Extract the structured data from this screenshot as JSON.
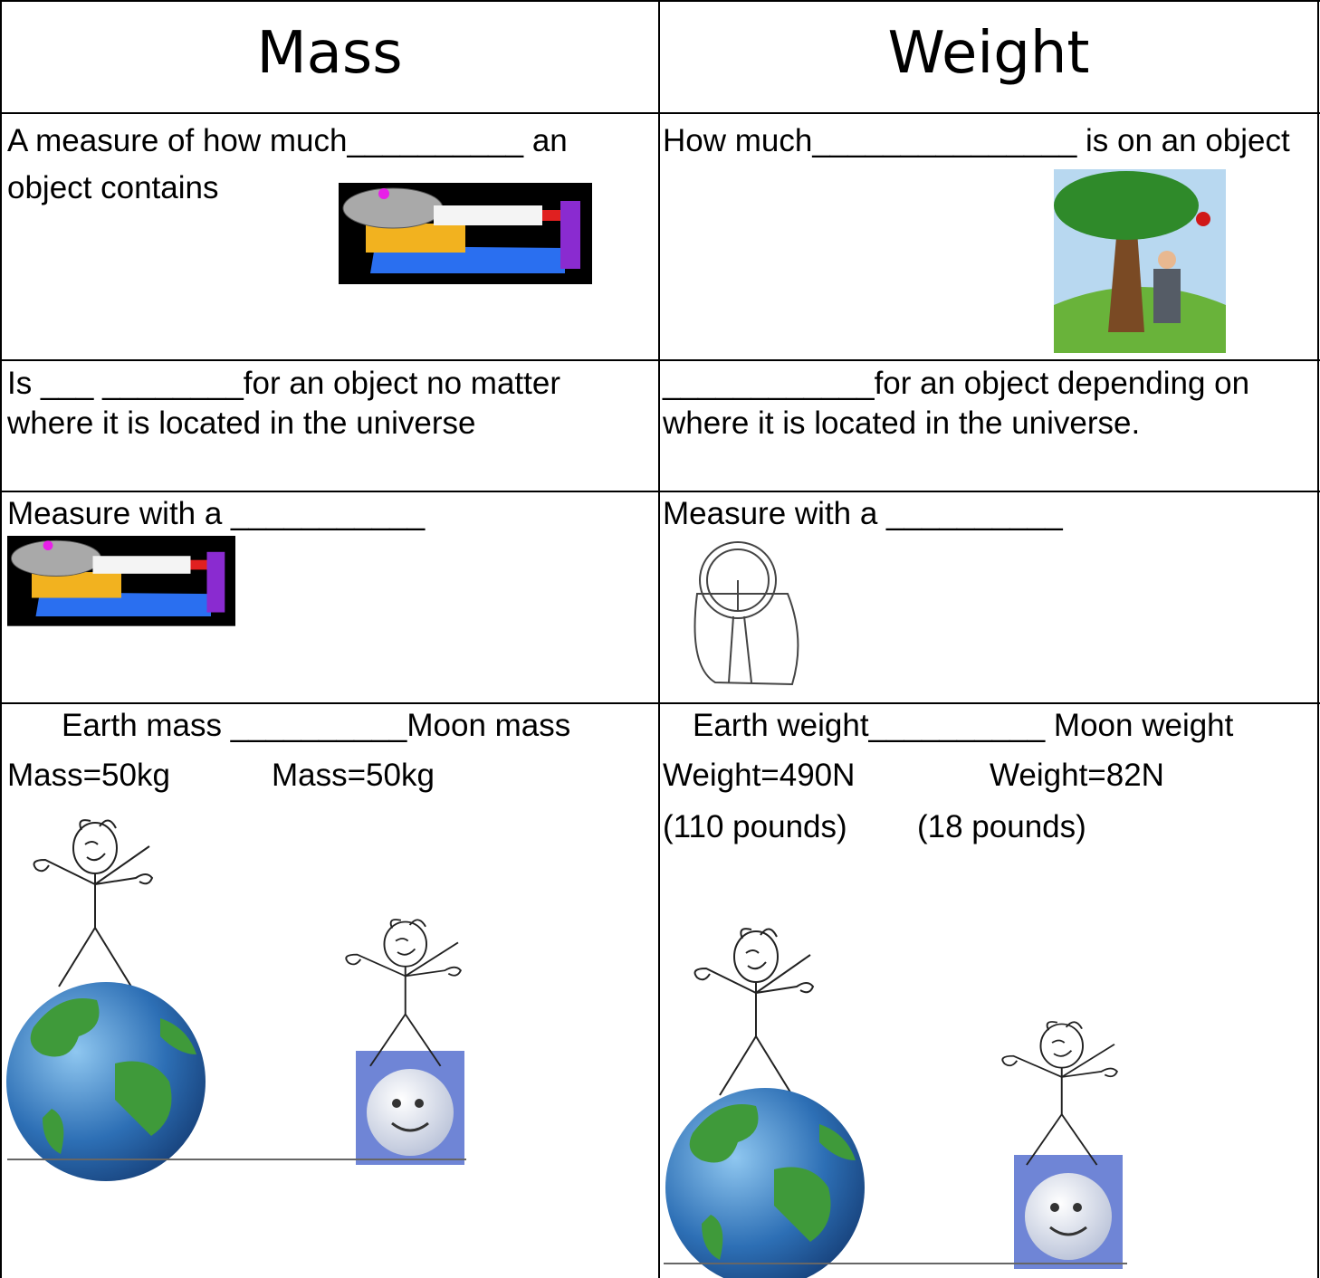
{
  "table": {
    "header": [
      "Mass",
      "Weight"
    ],
    "rows": [
      [
        "A measure of how much__________ an object contains",
        "How much_______________ is on an object"
      ],
      [
        "Is ___ ________for an object no matter where it is located in the universe",
        "____________for an object depending on where it is located in the universe."
      ],
      [
        "Measure with a ___________",
        "Measure with a __________"
      ]
    ],
    "comparison": [
      {
        "heading": "Earth mass __________Moon mass",
        "left": "Mass=50kg",
        "right": "Mass=50kg"
      },
      {
        "heading": "Earth weight__________ Moon weight",
        "left": "Weight=490N",
        "right": "Weight=82N",
        "left_note": "(110 pounds)",
        "right_note": "(18 pounds)"
      }
    ]
  }
}
